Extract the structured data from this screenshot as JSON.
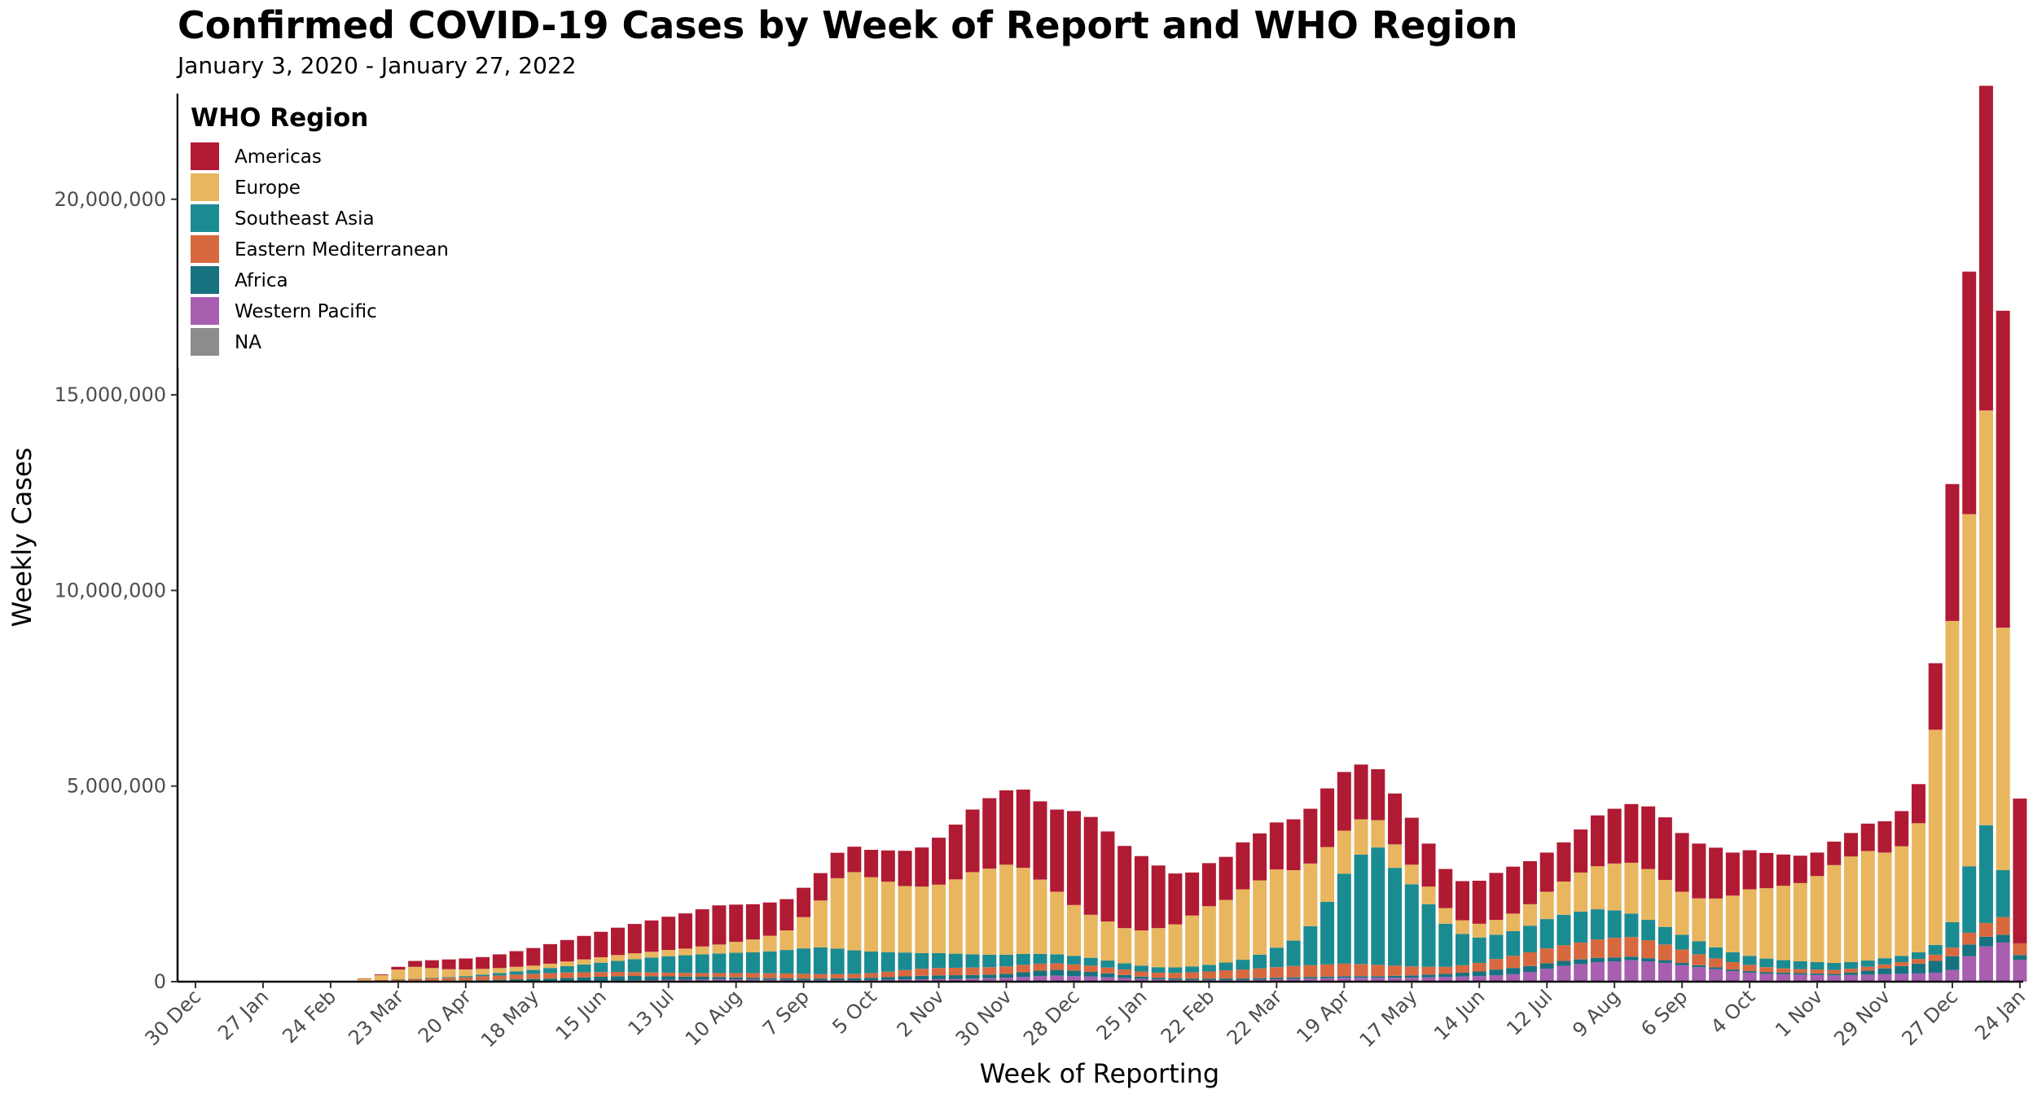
{
  "chart_data": {
    "type": "bar",
    "stacked": true,
    "title": "Confirmed COVID-19 Cases by Week of Report and WHO Region",
    "subtitle": "January 3, 2020 - January 27, 2022",
    "xlabel": "Week of Reporting",
    "ylabel": "Weekly Cases",
    "ylim": [
      0,
      22700000
    ],
    "yticks": [
      0,
      5000000,
      10000000,
      15000000,
      20000000
    ],
    "ytick_labels": [
      "0",
      "5,000,000",
      "10,000,000",
      "15,000,000",
      "20,000,000"
    ],
    "x_tick_labels": [
      "30 Dec",
      "27 Jan",
      "24 Feb",
      "23 Mar",
      "20 Apr",
      "18 May",
      "15 Jun",
      "13 Jul",
      "10 Aug",
      "7 Sep",
      "5 Oct",
      "2 Nov",
      "30 Nov",
      "28 Dec",
      "25 Jan",
      "22 Feb",
      "22 Mar",
      "19 Apr",
      "17 May",
      "14 Jun",
      "12 Jul",
      "9 Aug",
      "6 Sep",
      "4 Oct",
      "1 Nov",
      "29 Nov",
      "27 Dec",
      "24 Jan"
    ],
    "x_tick_week_index": [
      0,
      4,
      8,
      12,
      16,
      20,
      24,
      28,
      32,
      36,
      40,
      44,
      48,
      52,
      56,
      60,
      64,
      68,
      72,
      76,
      80,
      84,
      88,
      92,
      96,
      100,
      104,
      108
    ],
    "legend": {
      "title": "WHO Region",
      "position": "top-left"
    },
    "grid": false,
    "series": [
      {
        "name": "NA",
        "color": "#8c8c8c",
        "values": [
          0,
          0,
          0,
          0,
          0,
          0,
          0,
          0,
          0,
          0,
          0,
          0,
          0,
          0,
          0,
          0,
          0,
          0,
          0,
          0,
          0,
          0,
          0,
          0,
          0,
          0,
          0,
          0,
          0,
          0,
          0,
          0,
          0,
          0,
          0,
          0,
          0,
          0,
          0,
          0,
          0,
          0,
          0,
          0,
          0,
          0,
          0,
          0,
          0,
          0,
          0,
          0,
          0,
          0,
          0,
          0,
          0,
          0,
          0,
          0,
          0,
          0,
          0,
          0,
          0,
          0,
          0,
          0,
          0,
          0,
          0,
          0,
          0,
          0,
          0,
          0,
          0,
          0,
          0,
          0,
          0,
          0,
          0,
          0,
          0,
          0,
          0,
          0,
          0,
          0,
          0,
          0,
          0,
          0,
          0,
          0,
          0,
          0,
          0,
          0,
          0,
          0,
          0,
          0,
          0,
          0,
          0,
          0,
          0,
          0,
          0
        ]
      },
      {
        "name": "Western Pacific",
        "color": "#a85fb0",
        "values": [
          0,
          0,
          0,
          0,
          0,
          0,
          0,
          0,
          0,
          0,
          0,
          15000,
          10000,
          10000,
          8000,
          8000,
          8000,
          8000,
          8000,
          10000,
          10000,
          10000,
          15000,
          20000,
          25000,
          30000,
          35000,
          40000,
          45000,
          50000,
          55000,
          60000,
          60000,
          55000,
          50000,
          45000,
          40000,
          40000,
          40000,
          40000,
          40000,
          45000,
          55000,
          60000,
          65000,
          70000,
          80000,
          90000,
          100000,
          120000,
          140000,
          150000,
          140000,
          130000,
          110000,
          90000,
          70000,
          55000,
          45000,
          40000,
          40000,
          40000,
          40000,
          50000,
          60000,
          70000,
          80000,
          90000,
          100000,
          100000,
          100000,
          100000,
          100000,
          110000,
          120000,
          130000,
          140000,
          160000,
          190000,
          250000,
          330000,
          400000,
          450000,
          500000,
          520000,
          550000,
          520000,
          480000,
          420000,
          370000,
          320000,
          270000,
          230000,
          200000,
          190000,
          180000,
          170000,
          160000,
          170000,
          180000,
          190000,
          200000,
          210000,
          230000,
          300000,
          650000,
          900000,
          1000000,
          560000
        ]
      },
      {
        "name": "Africa",
        "color": "#17727f",
        "values": [
          0,
          0,
          0,
          0,
          0,
          0,
          0,
          0,
          0,
          0,
          0,
          0,
          5000,
          10000,
          15000,
          20000,
          25000,
          30000,
          40000,
          50000,
          60000,
          70000,
          80000,
          90000,
          100000,
          110000,
          110000,
          100000,
          90000,
          80000,
          70000,
          60000,
          50000,
          45000,
          40000,
          40000,
          40000,
          40000,
          45000,
          50000,
          60000,
          70000,
          80000,
          90000,
          95000,
          95000,
          90000,
          90000,
          100000,
          120000,
          140000,
          150000,
          140000,
          120000,
          100000,
          80000,
          60000,
          45000,
          40000,
          40000,
          40000,
          40000,
          40000,
          40000,
          40000,
          40000,
          40000,
          40000,
          40000,
          40000,
          40000,
          50000,
          60000,
          70000,
          80000,
          100000,
          120000,
          150000,
          160000,
          150000,
          140000,
          130000,
          120000,
          110000,
          100000,
          90000,
          80000,
          70000,
          60000,
          50000,
          45000,
          40000,
          40000,
          40000,
          40000,
          40000,
          40000,
          40000,
          60000,
          100000,
          150000,
          200000,
          250000,
          300000,
          350000,
          300000,
          250000,
          200000,
          120000
        ]
      },
      {
        "name": "Eastern Mediterranean",
        "color": "#d8693f",
        "values": [
          0,
          0,
          0,
          0,
          0,
          0,
          0,
          0,
          0,
          0,
          20000,
          30000,
          40000,
          50000,
          60000,
          70000,
          80000,
          100000,
          110000,
          120000,
          130000,
          140000,
          140000,
          130000,
          120000,
          110000,
          100000,
          95000,
          95000,
          95000,
          95000,
          100000,
          110000,
          120000,
          125000,
          125000,
          120000,
          115000,
          110000,
          110000,
          120000,
          140000,
          160000,
          180000,
          190000,
          190000,
          190000,
          190000,
          190000,
          190000,
          180000,
          170000,
          160000,
          160000,
          150000,
          140000,
          130000,
          130000,
          140000,
          160000,
          180000,
          210000,
          230000,
          250000,
          270000,
          290000,
          300000,
          310000,
          320000,
          310000,
          290000,
          260000,
          230000,
          200000,
          180000,
          190000,
          220000,
          270000,
          310000,
          350000,
          380000,
          400000,
          430000,
          470000,
          500000,
          500000,
          460000,
          400000,
          340000,
          280000,
          230000,
          190000,
          160000,
          130000,
          110000,
          100000,
          100000,
          100000,
          100000,
          100000,
          100000,
          100000,
          120000,
          160000,
          220000,
          300000,
          350000,
          450000,
          300000
        ]
      },
      {
        "name": "Southeast Asia",
        "color": "#1b8b92",
        "values": [
          0,
          0,
          0,
          0,
          0,
          0,
          0,
          0,
          0,
          0,
          0,
          0,
          5000,
          10000,
          15000,
          20000,
          30000,
          40000,
          60000,
          80000,
          100000,
          130000,
          160000,
          200000,
          240000,
          280000,
          330000,
          380000,
          420000,
          450000,
          480000,
          500000,
          520000,
          530000,
          560000,
          600000,
          650000,
          680000,
          650000,
          600000,
          550000,
          500000,
          450000,
          400000,
          380000,
          360000,
          340000,
          320000,
          300000,
          280000,
          250000,
          230000,
          220000,
          200000,
          180000,
          160000,
          150000,
          140000,
          140000,
          150000,
          170000,
          200000,
          250000,
          350000,
          500000,
          650000,
          1000000,
          1600000,
          2300000,
          2800000,
          3000000,
          2500000,
          2100000,
          1600000,
          1100000,
          800000,
          650000,
          620000,
          630000,
          680000,
          750000,
          780000,
          790000,
          770000,
          700000,
          600000,
          520000,
          450000,
          380000,
          330000,
          280000,
          250000,
          230000,
          220000,
          210000,
          200000,
          190000,
          180000,
          170000,
          160000,
          160000,
          160000,
          170000,
          250000,
          650000,
          1700000,
          2500000,
          1200000
        ]
      },
      {
        "name": "Europe",
        "color": "#e8b65e",
        "values": [
          0,
          0,
          0,
          0,
          0,
          0,
          0,
          0,
          0,
          0,
          60000,
          120000,
          250000,
          300000,
          250000,
          200000,
          170000,
          150000,
          130000,
          120000,
          110000,
          110000,
          120000,
          130000,
          140000,
          150000,
          150000,
          150000,
          160000,
          170000,
          200000,
          230000,
          280000,
          330000,
          400000,
          500000,
          800000,
          1200000,
          1800000,
          2000000,
          1900000,
          1800000,
          1700000,
          1700000,
          1750000,
          1900000,
          2100000,
          2200000,
          2300000,
          2200000,
          1900000,
          1600000,
          1300000,
          1100000,
          1000000,
          900000,
          900000,
          1000000,
          1100000,
          1300000,
          1500000,
          1600000,
          1800000,
          1900000,
          2000000,
          1800000,
          1600000,
          1400000,
          1100000,
          900000,
          700000,
          600000,
          500000,
          450000,
          400000,
          350000,
          350000,
          380000,
          450000,
          550000,
          700000,
          850000,
          1000000,
          1100000,
          1200000,
          1300000,
          1300000,
          1200000,
          1100000,
          1100000,
          1250000,
          1450000,
          1700000,
          1800000,
          1900000,
          2000000,
          2200000,
          2500000,
          2700000,
          2800000,
          2700000,
          2800000,
          3300000,
          5500000,
          7700000,
          9000000,
          10600000,
          6200000
        ]
      },
      {
        "name": "Americas",
        "color": "#b11a33",
        "values": [
          0,
          0,
          0,
          0,
          0,
          0,
          0,
          0,
          0,
          0,
          5000,
          20000,
          70000,
          150000,
          200000,
          250000,
          280000,
          300000,
          350000,
          400000,
          450000,
          500000,
          550000,
          600000,
          650000,
          700000,
          750000,
          800000,
          850000,
          900000,
          950000,
          1000000,
          950000,
          900000,
          850000,
          800000,
          750000,
          700000,
          650000,
          650000,
          700000,
          800000,
          900000,
          1000000,
          1200000,
          1400000,
          1600000,
          1800000,
          1900000,
          2000000,
          2000000,
          2100000,
          2400000,
          2500000,
          2300000,
          2100000,
          1900000,
          1600000,
          1300000,
          1100000,
          1100000,
          1100000,
          1200000,
          1200000,
          1200000,
          1300000,
          1400000,
          1500000,
          1500000,
          1400000,
          1300000,
          1300000,
          1200000,
          1100000,
          1000000,
          1000000,
          1100000,
          1200000,
          1200000,
          1100000,
          1000000,
          1000000,
          1100000,
          1300000,
          1400000,
          1500000,
          1600000,
          1600000,
          1500000,
          1400000,
          1300000,
          1100000,
          1000000,
          900000,
          800000,
          700000,
          600000,
          600000,
          600000,
          700000,
          800000,
          900000,
          1000000,
          1700000,
          3500000,
          6200000,
          8300000,
          8100000,
          3700000
        ]
      }
    ]
  }
}
